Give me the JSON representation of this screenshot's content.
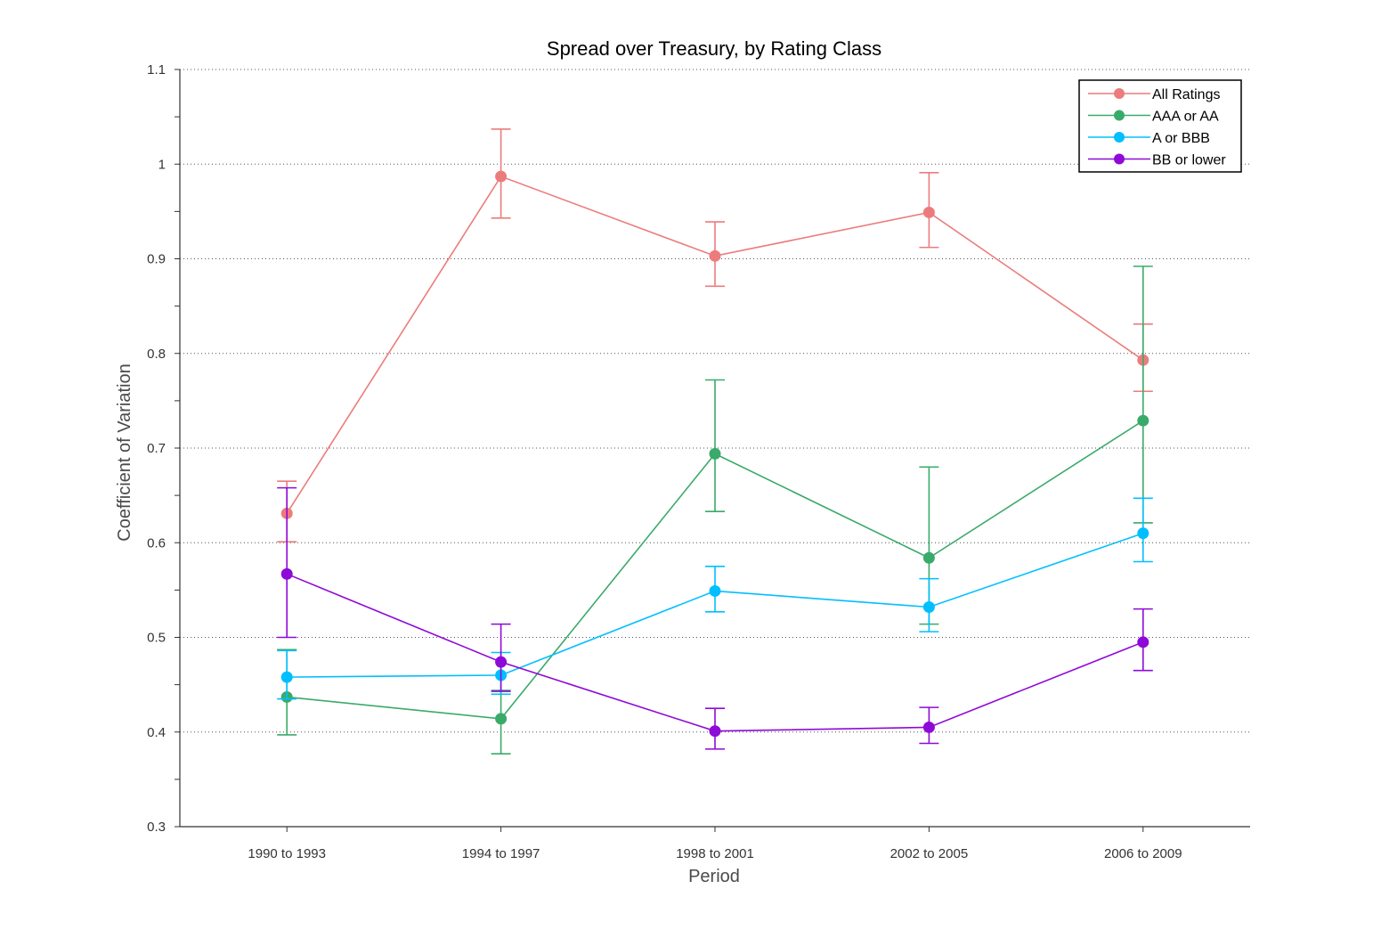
{
  "chart_data": {
    "type": "line",
    "title": "Spread over Treasury, by Rating Class",
    "xlabel": "Period",
    "ylabel": "Coefficient of Variation",
    "categories": [
      "1990 to 1993",
      "1994 to 1997",
      "1998 to 2001",
      "2002 to 2005",
      "2006 to 2009"
    ],
    "ylim": [
      0.3,
      1.1
    ],
    "yticks": [
      0.3,
      0.4,
      0.5,
      0.6,
      0.7,
      0.8,
      0.9,
      1,
      1.1
    ],
    "grid": "horizontal dotted",
    "legend_position": "top-right",
    "error_bars": true,
    "series": [
      {
        "name": "All Ratings",
        "color": "#ec7c7c",
        "values": [
          0.631,
          0.987,
          0.903,
          0.949,
          0.793
        ],
        "lower": [
          0.601,
          0.943,
          0.871,
          0.912,
          0.76
        ],
        "upper": [
          0.665,
          1.037,
          0.939,
          0.991,
          0.831
        ]
      },
      {
        "name": "AAA or AA",
        "color": "#3aaa6a",
        "values": [
          0.437,
          0.414,
          0.694,
          0.584,
          0.729
        ],
        "lower": [
          0.397,
          0.377,
          0.633,
          0.514,
          0.621
        ],
        "upper": [
          0.487,
          0.444,
          0.772,
          0.68,
          0.892
        ]
      },
      {
        "name": "A or BBB",
        "color": "#00bfff",
        "values": [
          0.458,
          0.46,
          0.549,
          0.532,
          0.61
        ],
        "lower": [
          0.435,
          0.44,
          0.527,
          0.506,
          0.58
        ],
        "upper": [
          0.486,
          0.484,
          0.575,
          0.562,
          0.647
        ]
      },
      {
        "name": "BB or lower",
        "color": "#8e0ad8",
        "values": [
          0.567,
          0.474,
          0.401,
          0.405,
          0.495
        ],
        "lower": [
          0.5,
          0.443,
          0.382,
          0.388,
          0.465
        ],
        "upper": [
          0.658,
          0.514,
          0.425,
          0.426,
          0.53
        ]
      }
    ]
  }
}
